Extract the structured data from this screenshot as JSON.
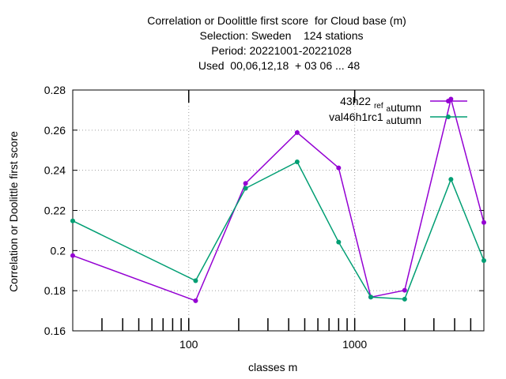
{
  "chart_data": {
    "type": "line",
    "title_lines": [
      "Correlation or Doolittle first score  for Cloud base (m)",
      "Selection: Sweden    124 stations",
      "Period: 20221001-20221028",
      "Used  00,06,12,18  + 03 06 ... 48"
    ],
    "xlabel": "classes m",
    "ylabel": "Correlation or Doolittle first score",
    "xscale": "log",
    "xlim": [
      20,
      6000
    ],
    "ylim": [
      0.16,
      0.28
    ],
    "yticks": [
      0.16,
      0.18,
      0.2,
      0.22,
      0.24,
      0.26,
      0.28
    ],
    "ytick_labels": [
      "0.16",
      "0.18",
      "0.2",
      "0.22",
      "0.24",
      "0.26",
      "0.28"
    ],
    "xticks": [
      100,
      1000
    ],
    "xtick_labels": [
      "100",
      "1000"
    ],
    "x": [
      20,
      110,
      220,
      450,
      800,
      1250,
      2000,
      3800,
      6000
    ],
    "grid": true,
    "legend_position": "top-right",
    "series": [
      {
        "name": "43h22_ref_autumn",
        "name_main": "43h22 ",
        "name_parts": [
          [
            "",
            "ref"
          ],
          [
            " ",
            "a"
          ],
          [
            "utumn",
            ""
          ]
        ],
        "color": "#9400d3",
        "values": [
          0.1975,
          0.175,
          0.2335,
          0.2588,
          0.2412,
          0.1768,
          0.1802,
          0.2755,
          0.214
        ]
      },
      {
        "name": "val46h1rc1_autumn",
        "name_main": "val46h1rc1 ",
        "name_parts": [
          [
            "",
            ""
          ],
          [
            "",
            "a"
          ],
          [
            "utumn",
            ""
          ]
        ],
        "color": "#009e73",
        "values": [
          0.2148,
          0.185,
          0.231,
          0.2442,
          0.2042,
          0.1768,
          0.1758,
          0.2355,
          0.195
        ]
      }
    ]
  }
}
